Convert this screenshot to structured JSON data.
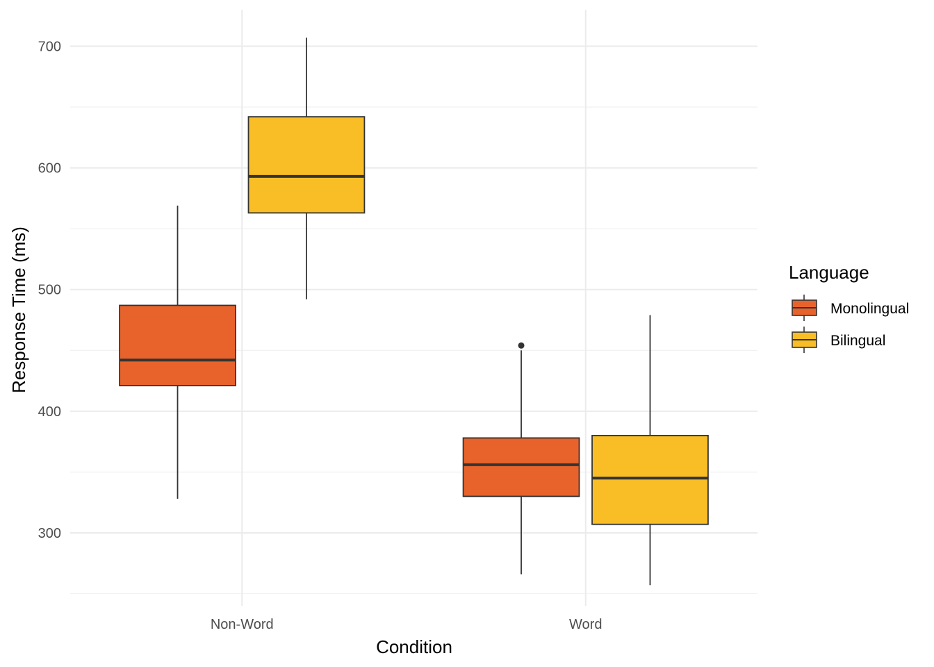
{
  "chart_data": {
    "type": "boxplot",
    "title": "",
    "xlabel": "Condition",
    "ylabel": "Response Time (ms)",
    "categories": [
      "Non-Word",
      "Word"
    ],
    "ylim": [
      240,
      730
    ],
    "yticks": [
      300,
      400,
      500,
      600,
      700
    ],
    "grid": true,
    "legend": {
      "title": "Language",
      "position": "right"
    },
    "series": [
      {
        "name": "Monolingual",
        "color": "#E8632B",
        "boxes": [
          {
            "category": "Non-Word",
            "min": 328,
            "q1": 421,
            "median": 442,
            "q3": 487,
            "max": 569,
            "outliers": []
          },
          {
            "category": "Word",
            "min": 266,
            "q1": 330,
            "median": 356,
            "q3": 378,
            "max": 450,
            "outliers": [
              454
            ]
          }
        ]
      },
      {
        "name": "Bilingual",
        "color": "#F9BE26",
        "boxes": [
          {
            "category": "Non-Word",
            "min": 492,
            "q1": 563,
            "median": 593,
            "q3": 642,
            "max": 707,
            "outliers": []
          },
          {
            "category": "Word",
            "min": 257,
            "q1": 307,
            "median": 345,
            "q3": 380,
            "max": 479,
            "outliers": []
          }
        ]
      }
    ]
  }
}
